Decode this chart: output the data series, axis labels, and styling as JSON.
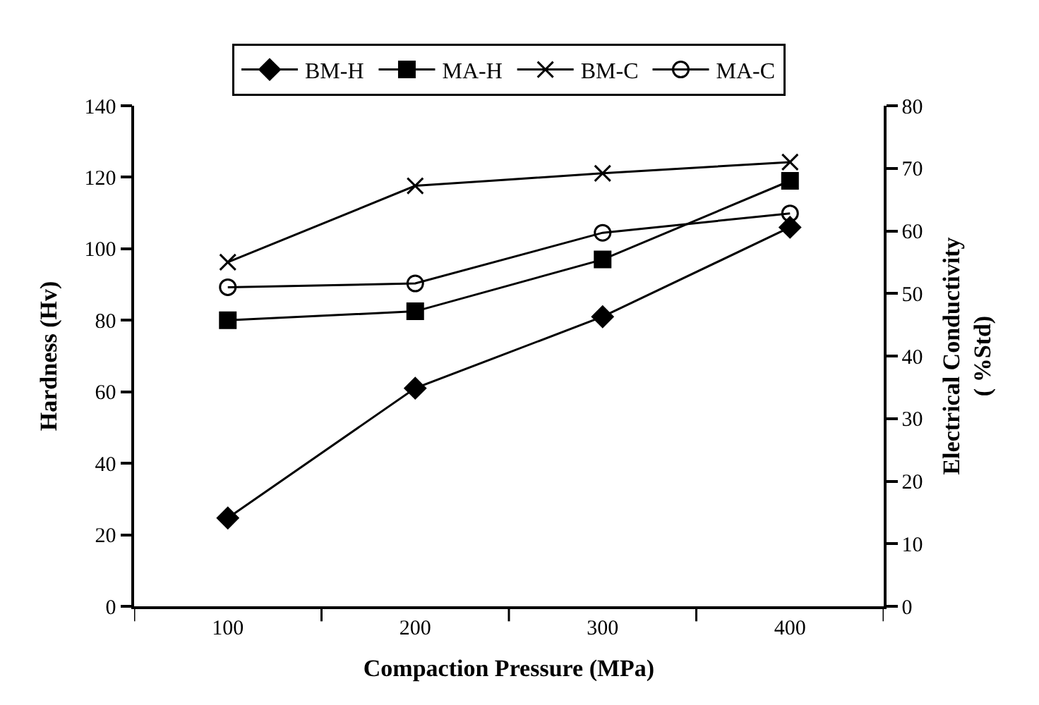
{
  "chart_data": {
    "type": "line",
    "xlabel": "Compaction Pressure (MPa)",
    "ylabel": "Hardness (Hv)",
    "y2label": "Electrical Conductivity\n( %Std)",
    "categories": [
      "100",
      "200",
      "300",
      "400"
    ],
    "series": [
      {
        "name": "BM-H",
        "color": "#000000",
        "marker": "diamond",
        "values": [
          24.7,
          61,
          81,
          106
        ]
      },
      {
        "name": "MA-H",
        "color": "#000000",
        "marker": "square",
        "values": [
          80,
          82.5,
          97,
          119
        ]
      },
      {
        "name": "BM-C",
        "color": "#000000",
        "marker": "cross",
        "axis": "y2",
        "values": [
          55,
          67.2,
          69.2,
          71
        ]
      },
      {
        "name": "MA-C",
        "color": "#000000",
        "marker": "circle",
        "axis": "y2",
        "values": [
          51,
          51.6,
          59.7,
          62.8
        ]
      }
    ],
    "ylim": [
      0,
      140
    ],
    "yticks": [
      0,
      20,
      40,
      60,
      80,
      100,
      120,
      140
    ],
    "y2lim": [
      0,
      80
    ],
    "y2ticks": [
      0,
      10,
      20,
      30,
      40,
      50,
      60,
      70,
      80
    ],
    "legend": "top",
    "line_style": "solid"
  }
}
